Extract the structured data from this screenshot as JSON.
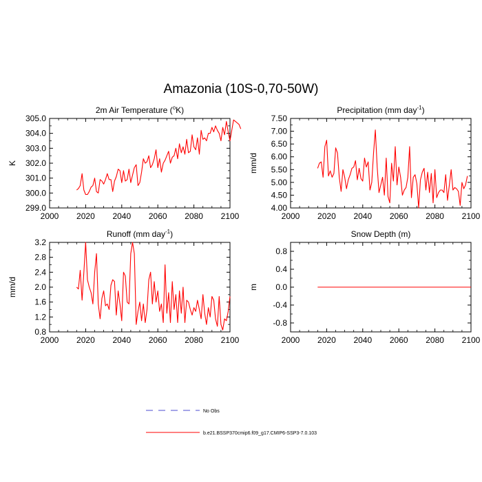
{
  "figure_title": "Amazonia (10S-0,70-50W)",
  "colors": {
    "model_line": "#ff0000",
    "obs_line": "#4b4bd2",
    "axis": "#000000"
  },
  "legend": [
    {
      "label": "No Obs",
      "style": "dashed",
      "color": "#4b4bd2"
    },
    {
      "label": "b.e21.BSSP370cmip6.f09_g17.CMIP6-SSP3-7.0.103",
      "style": "solid",
      "color": "#ff0000"
    }
  ],
  "chart_data": [
    {
      "type": "line",
      "title_main": "2m Air Temperature (",
      "title_sup": "o",
      "title_end": "K)",
      "ylabel": "K",
      "xlim": [
        2000,
        2100
      ],
      "ylim": [
        299.0,
        305.0
      ],
      "xticks": [
        "2000",
        "2020",
        "2040",
        "2060",
        "2080",
        "2100"
      ],
      "yticks": [
        "299.0",
        "300.0",
        "301.0",
        "302.0",
        "303.0",
        "304.0",
        "305.0"
      ],
      "series": [
        {
          "name": "b.e21.BSSP370cmip6.f09_g17.CMIP6-SSP3-7.0.103",
          "x_start": 2015,
          "values": [
            300.2,
            300.3,
            300.5,
            301.3,
            300.2,
            299.9,
            299.9,
            300.1,
            300.4,
            300.5,
            301.0,
            300.1,
            300.0,
            300.9,
            300.8,
            300.6,
            300.9,
            301.3,
            300.9,
            300.9,
            300.1,
            300.8,
            301.1,
            301.6,
            301.5,
            300.7,
            301.5,
            300.8,
            300.9,
            301.6,
            300.7,
            301.2,
            301.7,
            301.9,
            300.5,
            300.7,
            301.4,
            302.3,
            302.0,
            302.1,
            302.5,
            301.7,
            301.9,
            302.3,
            302.9,
            301.7,
            302.3,
            301.4,
            302.0,
            302.2,
            302.5,
            302.8,
            302.0,
            302.4,
            302.5,
            303.0,
            302.3,
            303.3,
            302.7,
            303.1,
            302.6,
            303.6,
            302.7,
            302.8,
            303.9,
            303.1,
            302.9,
            303.7,
            302.6,
            304.2,
            303.6,
            303.7,
            303.5,
            304.0,
            304.0,
            304.4,
            304.1,
            304.5,
            304.2,
            304.0,
            303.5,
            304.4,
            303.9,
            304.8,
            304.1,
            303.5,
            304.2,
            304.9,
            304.8,
            304.7,
            304.6,
            304.3
          ]
        }
      ]
    },
    {
      "type": "line",
      "title_main": "Precipitation (mm day",
      "title_sup": "-1",
      "title_end": ")",
      "ylabel": "mm/d",
      "xlim": [
        2000,
        2100
      ],
      "ylim": [
        4.0,
        7.5
      ],
      "xticks": [
        "2000",
        "2020",
        "2040",
        "2060",
        "2080",
        "2100"
      ],
      "yticks": [
        "4.00",
        "4.50",
        "5.00",
        "5.50",
        "6.00",
        "6.50",
        "7.00",
        "7.50"
      ],
      "series": [
        {
          "name": "b.e21.BSSP370cmip6.f09_g17.CMIP6-SSP3-7.0.103",
          "x_start": 2015,
          "values": [
            5.55,
            5.75,
            5.8,
            5.2,
            6.4,
            6.65,
            5.25,
            5.45,
            5.2,
            5.35,
            6.35,
            6.15,
            5.2,
            4.65,
            5.5,
            5.2,
            4.75,
            5.1,
            5.3,
            5.55,
            5.6,
            5.85,
            5.1,
            5.55,
            5.15,
            5.05,
            5.95,
            5.6,
            5.8,
            4.7,
            5.0,
            6.15,
            7.05,
            5.6,
            4.6,
            4.9,
            5.2,
            4.5,
            5.95,
            4.45,
            4.2,
            5.75,
            5.05,
            6.4,
            4.9,
            5.6,
            5.2,
            4.5,
            4.7,
            4.8,
            5.2,
            6.4,
            4.4,
            5.2,
            5.3,
            4.95,
            4.0,
            5.1,
            5.4,
            5.55,
            4.7,
            5.4,
            4.6,
            5.35,
            4.2,
            5.5,
            4.4,
            4.6,
            4.7,
            4.7,
            4.6,
            5.3,
            4.3,
            4.9,
            5.5,
            4.7,
            4.8,
            4.75,
            4.65,
            4.1,
            5.0,
            4.75,
            4.9,
            5.25
          ]
        }
      ]
    },
    {
      "type": "line",
      "title_main": "Runoff (mm day",
      "title_sup": "-1",
      "title_end": ")",
      "ylabel": "mm/d",
      "xlim": [
        2000,
        2100
      ],
      "ylim": [
        0.8,
        3.2
      ],
      "xticks": [
        "2000",
        "2020",
        "2040",
        "2060",
        "2080",
        "2100"
      ],
      "yticks": [
        "0.8",
        "1.2",
        "1.6",
        "2.0",
        "2.4",
        "2.8",
        "3.2"
      ],
      "series": [
        {
          "name": "b.e21.BSSP370cmip6.f09_g17.CMIP6-SSP3-7.0.103",
          "x_start": 2015,
          "values": [
            2.0,
            1.95,
            2.45,
            1.65,
            2.4,
            3.2,
            2.2,
            2.0,
            1.85,
            1.55,
            2.4,
            2.9,
            1.55,
            1.15,
            1.7,
            1.9,
            1.5,
            1.55,
            1.4,
            2.05,
            2.2,
            2.15,
            1.25,
            1.9,
            1.55,
            1.1,
            2.4,
            2.3,
            1.6,
            1.55,
            2.9,
            3.2,
            2.9,
            1.0,
            1.35,
            1.6,
            1.1,
            1.55,
            1.05,
            1.4,
            2.2,
            2.4,
            1.55,
            2.15,
            1.6,
            1.9,
            1.35,
            1.55,
            1.05,
            2.6,
            1.3,
            1.85,
            1.05,
            2.15,
            1.4,
            1.8,
            1.05,
            1.9,
            1.3,
            2.0,
            1.05,
            1.65,
            1.6,
            1.4,
            1.25,
            1.45,
            1.35,
            1.65,
            1.4,
            1.15,
            1.8,
            1.3,
            1.0,
            1.45,
            1.2,
            1.75,
            1.65,
            1.15,
            0.95,
            1.75,
            1.0,
            0.85,
            1.15,
            1.1,
            1.35,
            1.75
          ]
        }
      ]
    },
    {
      "type": "line",
      "title_main": "Snow Depth (m)",
      "title_sup": "",
      "title_end": "",
      "ylabel": "m",
      "xlim": [
        2000,
        2100
      ],
      "ylim": [
        -1.0,
        1.0
      ],
      "xticks": [
        "2000",
        "2020",
        "2040",
        "2060",
        "2080",
        "2100"
      ],
      "yticks": [
        "-0.8",
        "-0.4",
        "0.0",
        "0.4",
        "0.8"
      ],
      "yticks_values": [
        -0.8,
        -0.4,
        0.0,
        0.4,
        0.8
      ],
      "series": [
        {
          "name": "b.e21.BSSP370cmip6.f09_g17.CMIP6-SSP3-7.0.103",
          "x": [
            2015,
            2100
          ],
          "values": [
            0.0,
            0.0
          ]
        }
      ]
    }
  ]
}
